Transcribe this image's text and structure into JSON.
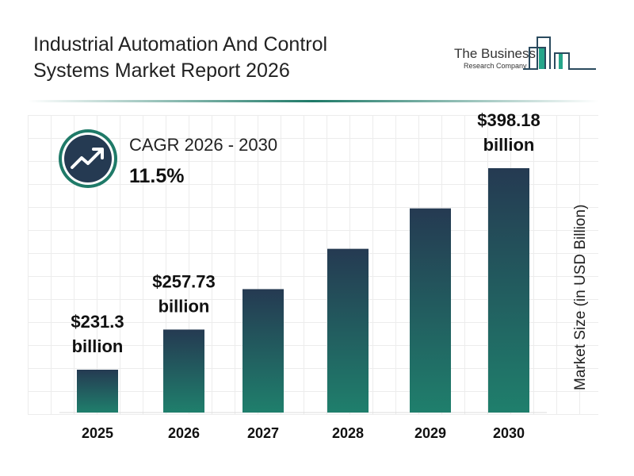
{
  "title": "Industrial Automation And Control Systems Market Report 2026",
  "logo": {
    "line1": "The Business",
    "line2": "Research Company"
  },
  "cagr": {
    "label": "CAGR 2026 - 2030",
    "value": "11.5%",
    "icon": "trending-up-icon"
  },
  "colors": {
    "bar_top": "#253a52",
    "bar_bottom": "#1f7f6c",
    "accent": "#1f7a68"
  },
  "chart_data": {
    "type": "bar",
    "categories": [
      "2025",
      "2026",
      "2027",
      "2028",
      "2029",
      "2030"
    ],
    "values": [
      231.3,
      257.73,
      287.4,
      320.4,
      357.3,
      398.18
    ],
    "data_labels": [
      {
        "category": "2025",
        "line1": "$231.3",
        "line2": "billion"
      },
      {
        "category": "2026",
        "line1": "$257.73",
        "line2": "billion"
      },
      {
        "category": "2030",
        "line1": "$398.18",
        "line2": "billion"
      }
    ],
    "ylabel": "Market Size (in USD Billion)",
    "xlabel": "",
    "grid": true
  }
}
